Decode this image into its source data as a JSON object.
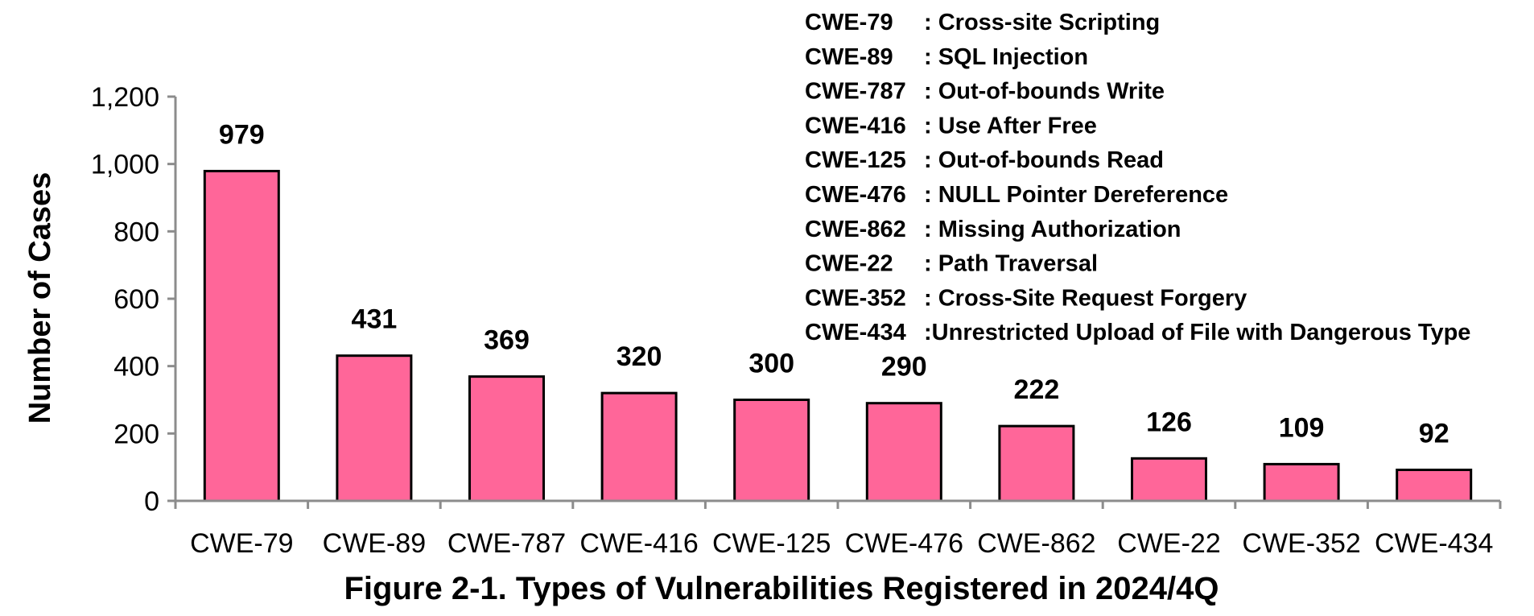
{
  "colors": {
    "bar_fill": "#ff6699",
    "bar_stroke": "#000000",
    "axis": "#8c8c8c",
    "text": "#000000"
  },
  "chart_data": {
    "type": "bar",
    "title": "",
    "xlabel": "",
    "ylabel": "Number of Cases",
    "caption": "Figure 2-1. Types of Vulnerabilities Registered in 2024/4Q",
    "categories": [
      "CWE-79",
      "CWE-89",
      "CWE-787",
      "CWE-416",
      "CWE-125",
      "CWE-476",
      "CWE-862",
      "CWE-22",
      "CWE-352",
      "CWE-434"
    ],
    "values": [
      979,
      431,
      369,
      320,
      300,
      290,
      222,
      126,
      109,
      92
    ],
    "value_labels": [
      "979",
      "431",
      "369",
      "320",
      "300",
      "290",
      "222",
      "126",
      "109",
      "92"
    ],
    "ylim": [
      0,
      1200
    ],
    "yticks": [
      0,
      200,
      400,
      600,
      800,
      1000,
      1200
    ],
    "ytick_labels": [
      "0",
      "200",
      "400",
      "600",
      "800",
      "1,000",
      "1,200"
    ],
    "grid": false,
    "legend_placement": "top-right",
    "legend": [
      {
        "code": "CWE-79",
        "description": ": Cross-site Scripting"
      },
      {
        "code": "CWE-89",
        "description": ": SQL Injection"
      },
      {
        "code": "CWE-787",
        "description": ": Out-of-bounds Write"
      },
      {
        "code": "CWE-416",
        "description": ": Use After Free"
      },
      {
        "code": "CWE-125",
        "description": ": Out-of-bounds Read"
      },
      {
        "code": "CWE-476",
        "description": ": NULL Pointer Dereference"
      },
      {
        "code": "CWE-862",
        "description": ": Missing Authorization"
      },
      {
        "code": "CWE-22",
        "description": ": Path Traversal"
      },
      {
        "code": "CWE-352",
        "description": ": Cross-Site Request Forgery"
      },
      {
        "code": "CWE-434",
        "description": ":Unrestricted Upload of File with Dangerous Type"
      }
    ]
  }
}
